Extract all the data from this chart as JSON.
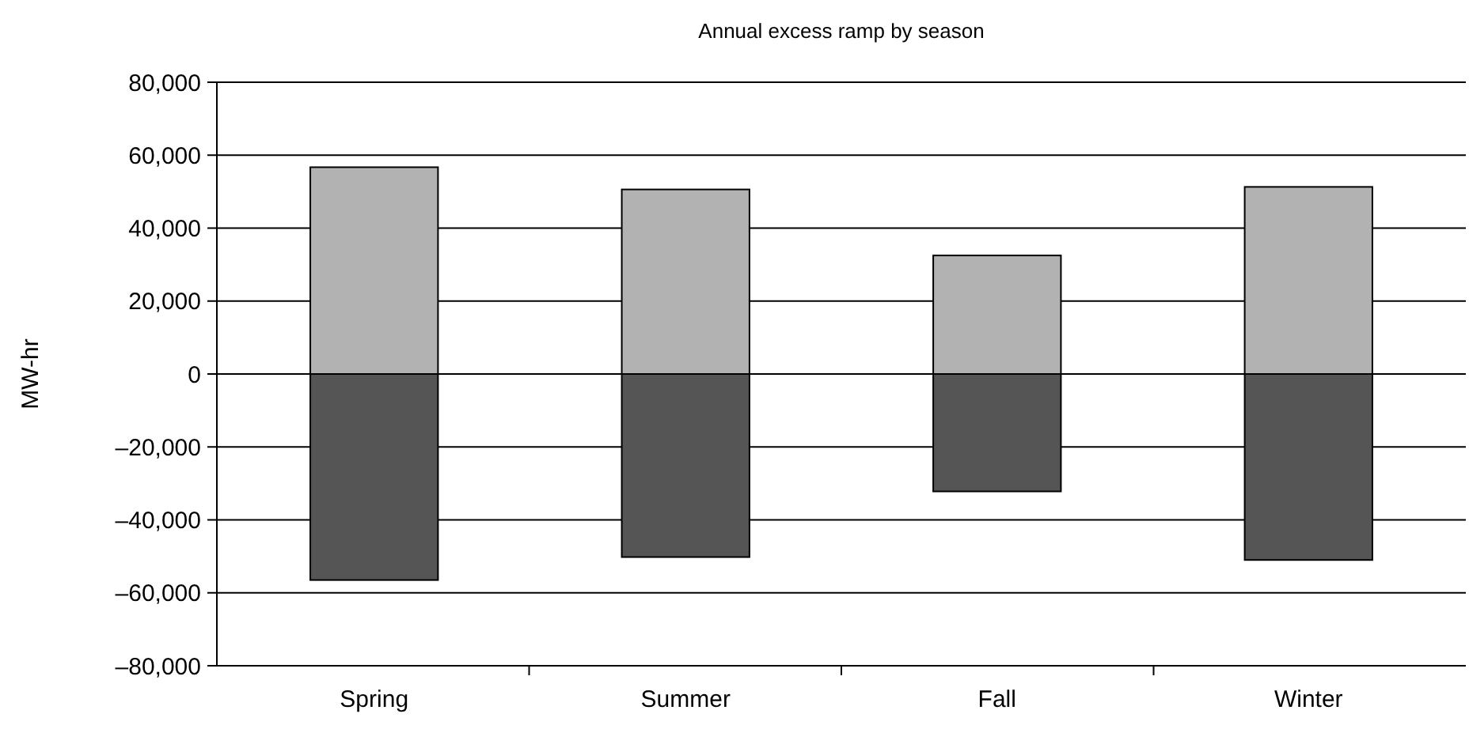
{
  "chart_data": {
    "type": "bar",
    "title": "Annual excess ramp by season",
    "ylabel": "MW-hr",
    "categories": [
      "Spring",
      "Summer",
      "Fall",
      "Winter"
    ],
    "stacked": true,
    "grid": "y",
    "series": [
      {
        "color": "#b2b2b2",
        "values": [
          56700,
          50600,
          32500,
          51300
        ]
      },
      {
        "color": "#555555",
        "values": [
          -56500,
          -50200,
          -32200,
          -51000
        ]
      }
    ],
    "ylim": [
      -80000,
      80000
    ],
    "yticks": [
      {
        "value": -80000,
        "label": "–80,000"
      },
      {
        "value": -60000,
        "label": "–60,000"
      },
      {
        "value": -40000,
        "label": "–40,000"
      },
      {
        "value": -20000,
        "label": "–20,000"
      },
      {
        "value": 0,
        "label": "0"
      },
      {
        "value": 20000,
        "label": "20,000"
      },
      {
        "value": 40000,
        "label": "40,000"
      },
      {
        "value": 60000,
        "label": "60,000"
      },
      {
        "value": 80000,
        "label": "80,000"
      }
    ]
  }
}
